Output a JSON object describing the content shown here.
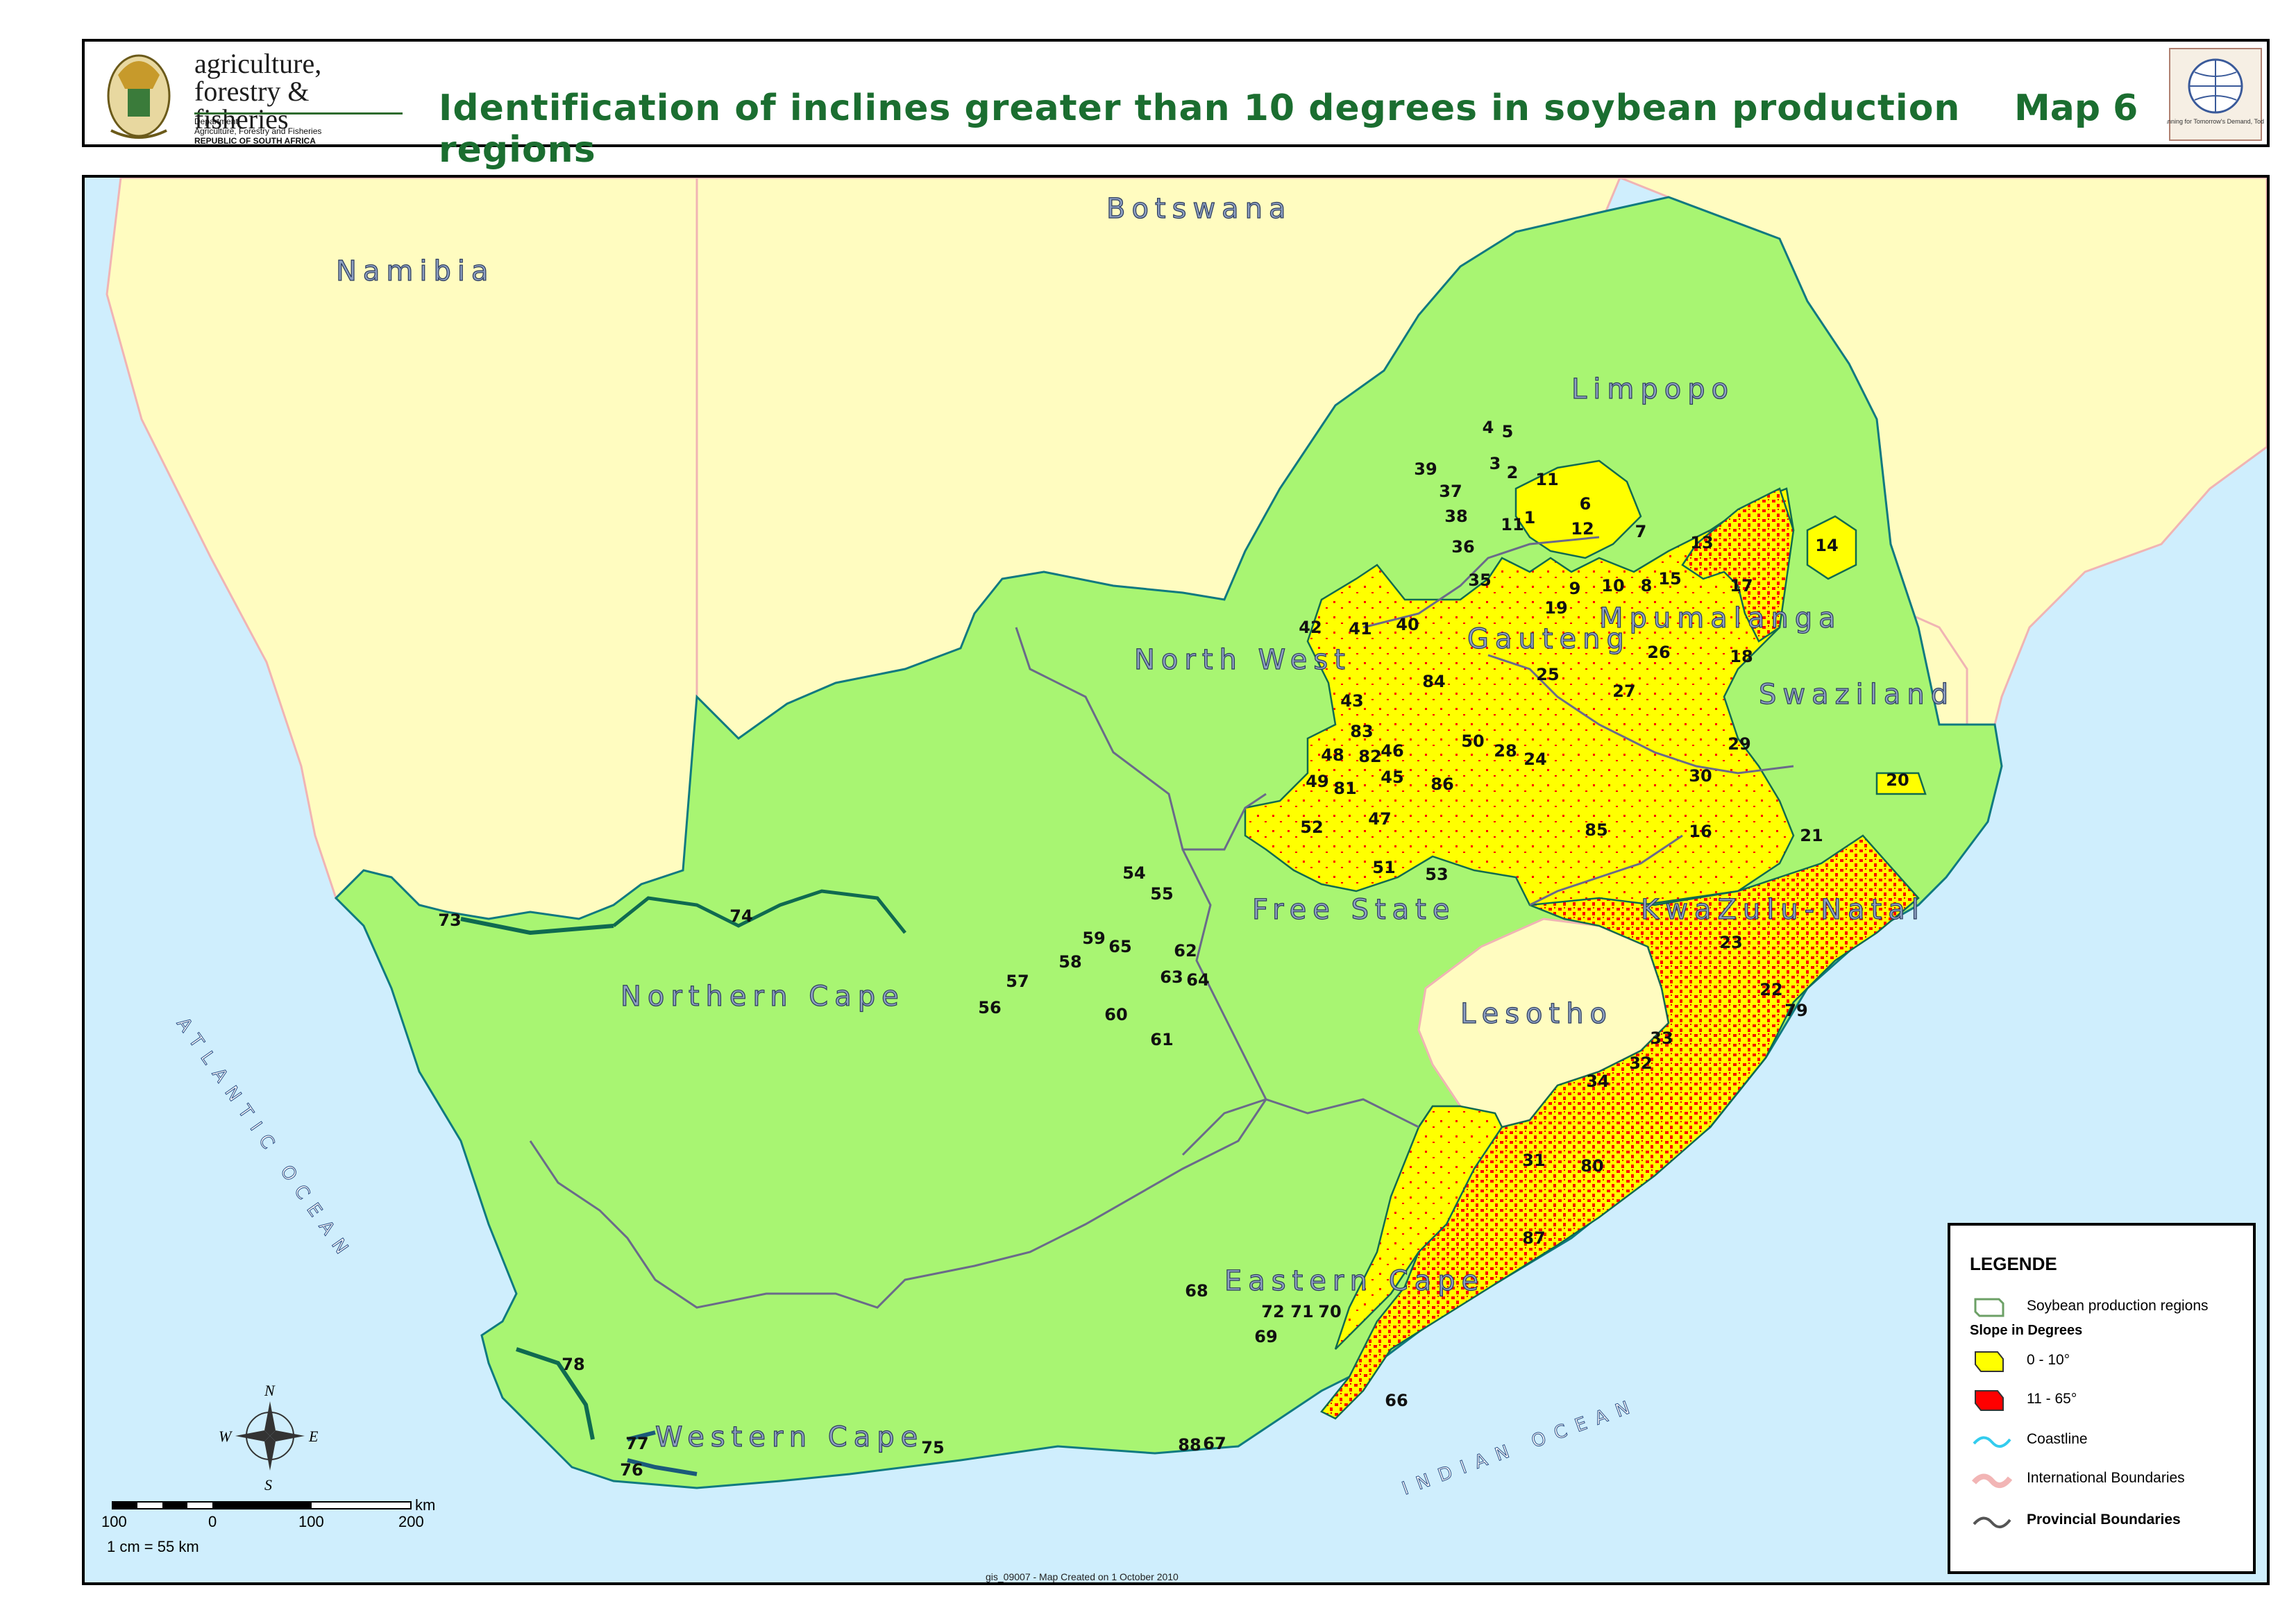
{
  "header": {
    "dept_name_1": "agriculture,",
    "dept_name_2": "forestry & fisheries",
    "dept_small_1": "Department:",
    "dept_small_2": "Agriculture, Forestry and Fisheries",
    "dept_small_3": "REPUBLIC OF SOUTH AFRICA",
    "title": "Identification of inclines greater than 10 degrees in soybean production regions",
    "map_number": "Map 6",
    "logo_caption": "Planning for Tomorrow's Demand, Today!"
  },
  "countries": {
    "namibia": "Namibia",
    "botswana": "Botswana",
    "swaziland": "Swaziland",
    "lesotho": "Lesotho"
  },
  "provinces": {
    "limpopo": "Limpopo",
    "mpumalanga": "Mpumalanga",
    "gauteng": "Gauteng",
    "north_west": "North West",
    "free_state": "Free State",
    "kwazulu_natal": "KwaZulu-Natal",
    "northern_cape": "Northern Cape",
    "eastern_cape": "Eastern Cape",
    "western_cape": "Western Cape"
  },
  "oceans": {
    "atlantic": "ATLANTIC OCEAN",
    "indian": "INDIAN OCEAN"
  },
  "region_numbers": [
    "1",
    "2",
    "3",
    "4",
    "5",
    "6",
    "7",
    "8",
    "9",
    "10",
    "11",
    "11",
    "12",
    "13",
    "14",
    "15",
    "16",
    "17",
    "18",
    "19",
    "20",
    "21",
    "22",
    "23",
    "24",
    "25",
    "26",
    "27",
    "28",
    "29",
    "30",
    "31",
    "32",
    "33",
    "34",
    "35",
    "36",
    "37",
    "38",
    "39",
    "40",
    "41",
    "42",
    "43",
    "45",
    "46",
    "47",
    "48",
    "49",
    "50",
    "51",
    "52",
    "53",
    "54",
    "55",
    "56",
    "57",
    "58",
    "59",
    "60",
    "61",
    "62",
    "63",
    "64",
    "65",
    "66",
    "67",
    "68",
    "69",
    "70",
    "71",
    "72",
    "73",
    "74",
    "75",
    "76",
    "77",
    "78",
    "79",
    "80",
    "81",
    "82",
    "83",
    "84",
    "85",
    "86",
    "87",
    "88"
  ],
  "legend": {
    "title": "LEGENDE",
    "items": [
      {
        "label": "Soybean production regions",
        "symbol": "region-outline"
      },
      {
        "label": "0 - 10°",
        "symbol": "yellow-patch",
        "color": "#ffff00"
      },
      {
        "label": "11 -  65°",
        "symbol": "red-patch",
        "color": "#ff0000"
      },
      {
        "label": "Coastline",
        "symbol": "cyan-line",
        "color": "#33ccee"
      },
      {
        "label": "International Boundaries",
        "symbol": "pink-line",
        "color": "#f2b5b5"
      },
      {
        "label": "Provincial Boundaries",
        "symbol": "grey-line",
        "color": "#555555"
      }
    ],
    "subtitle": "Slope in Degrees"
  },
  "scale": {
    "ticks": [
      "100",
      "0",
      "100",
      "200"
    ],
    "unit": "km",
    "ratio": "1 cm = 55 km"
  },
  "compass": {
    "n": "N",
    "s": "S",
    "e": "E",
    "w": "W"
  },
  "footer": "gis_09007 - Map Created on 1 October 2010",
  "colors": {
    "land_sa": "#a8f572",
    "land_neighbours": "#fffcc0",
    "sea": "#cfeefd",
    "slope_low": "#ffff00",
    "slope_high": "#ff0000",
    "title_green": "#1b6e30"
  }
}
